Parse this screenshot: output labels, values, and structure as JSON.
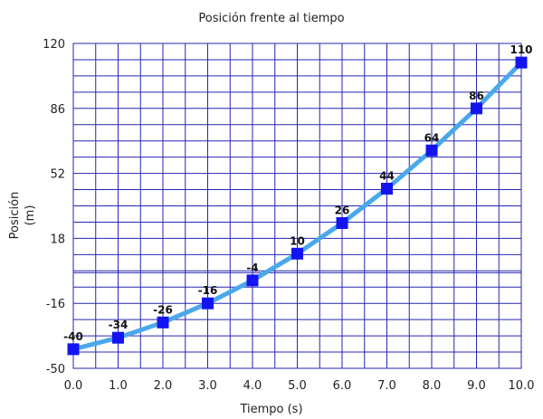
{
  "chart_data": {
    "type": "line",
    "title": "Posición frente al tiempo",
    "xlabel": "Tiempo (s)",
    "ylabel_lines": [
      "Posición",
      "(m)"
    ],
    "x": [
      0,
      1,
      2,
      3,
      4,
      5,
      6,
      7,
      8,
      9,
      10
    ],
    "x_tick_labels": [
      "0.0",
      "1.0",
      "2.0",
      "3.0",
      "4.0",
      "5.0",
      "6.0",
      "7.0",
      "8.0",
      "9.0",
      "10.0"
    ],
    "values": [
      -40,
      -34,
      -26,
      -16,
      -4,
      10,
      26,
      44,
      64,
      86,
      110
    ],
    "data_labels": [
      "-40",
      "-34",
      "-26",
      "-16",
      "-4",
      "10",
      "26",
      "44",
      "64",
      "86",
      "110"
    ],
    "y_ticks": [
      -50,
      -16,
      18,
      52,
      86,
      120
    ],
    "y_tick_labels": [
      "-50",
      "-16",
      "18",
      "52",
      "86",
      "120"
    ],
    "xlim": [
      0,
      10
    ],
    "ylim": [
      -50,
      120
    ],
    "y_minor_step": 8.5,
    "x_minor_step": 0.5,
    "grid": true,
    "colors": {
      "line": "#4aa8ea",
      "marker": "#1414f0",
      "grid": "#2626b4"
    }
  }
}
